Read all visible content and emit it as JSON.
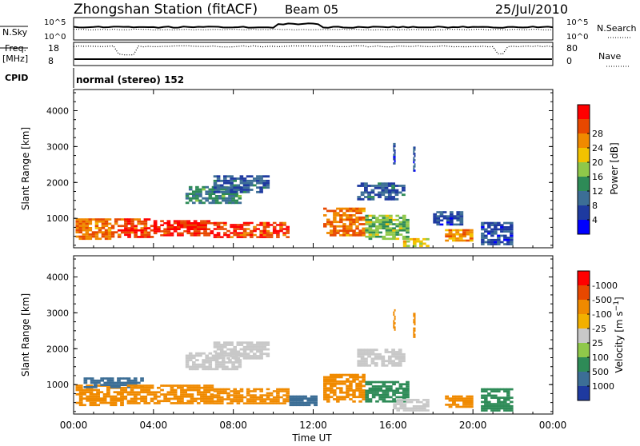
{
  "header": {
    "title": "Zhongshan Station (fitACF)",
    "beam": "Beam 05",
    "date": "25/Jul/2010"
  },
  "panels": {
    "nsky": {
      "left_label": "N.Sky",
      "ticks_left": [
        "10^5",
        "10^0"
      ],
      "right_label": "N.Search",
      "ticks_right": [
        "10^5",
        "10^0"
      ]
    },
    "freq": {
      "left_label_1": "Freq.",
      "left_label_2": "[MHz]",
      "ticks_left": [
        "18",
        "8"
      ],
      "right_label": "Nave",
      "ticks_right": [
        "80",
        "0"
      ]
    },
    "cpid": {
      "label": "CPID",
      "mode_text": "normal (stereo) 152"
    }
  },
  "chart_data": [
    {
      "type": "heatmap",
      "title": "",
      "xlabel": "Time UT",
      "ylabel": "Slant Range [km]",
      "x_ticks": [
        "00:00",
        "04:00",
        "08:00",
        "12:00",
        "16:00",
        "20:00",
        "00:00"
      ],
      "y_ticks": [
        1000,
        2000,
        3000,
        4000
      ],
      "ylim": [
        180,
        4590
      ],
      "colorbar": {
        "label": "Power [dB]",
        "ticks": [
          4,
          8,
          12,
          16,
          20,
          24,
          28
        ],
        "range": [
          0,
          30
        ],
        "colors": [
          "#0000ff",
          "#1e3aa0",
          "#3c6e96",
          "#2e8b57",
          "#8fc84a",
          "#f2c200",
          "#f08a00",
          "#e84800",
          "#ff0000"
        ]
      },
      "regions": [
        {
          "t": [
            0.1,
            2.2
          ],
          "r": [
            400,
            1000
          ],
          "value": 24
        },
        {
          "t": [
            2.2,
            4.0
          ],
          "r": [
            450,
            1000
          ],
          "value": 27
        },
        {
          "t": [
            4.0,
            7.0
          ],
          "r": [
            500,
            950
          ],
          "value": 28
        },
        {
          "t": [
            7.0,
            10.8
          ],
          "r": [
            450,
            900
          ],
          "value": 27
        },
        {
          "t": [
            5.6,
            8.4
          ],
          "r": [
            1400,
            1900
          ],
          "value": 10
        },
        {
          "t": [
            7.0,
            9.8
          ],
          "r": [
            1700,
            2200
          ],
          "value": 6
        },
        {
          "t": [
            12.5,
            14.6
          ],
          "r": [
            500,
            1300
          ],
          "value": 24
        },
        {
          "t": [
            14.6,
            16.8
          ],
          "r": [
            400,
            1100
          ],
          "value": 14
        },
        {
          "t": [
            14.2,
            16.6
          ],
          "r": [
            1500,
            2000
          ],
          "value": 6
        },
        {
          "t": [
            16.5,
            17.8
          ],
          "r": [
            200,
            450
          ],
          "value": 18
        },
        {
          "t": [
            18.0,
            19.5
          ],
          "r": [
            800,
            1200
          ],
          "value": 5
        },
        {
          "t": [
            18.6,
            20.0
          ],
          "r": [
            350,
            700
          ],
          "value": 22
        },
        {
          "t": [
            20.4,
            22.0
          ],
          "r": [
            250,
            900
          ],
          "value": 5
        },
        {
          "t": [
            16.0,
            16.1
          ],
          "r": [
            2500,
            3100
          ],
          "value": 5
        },
        {
          "t": [
            17.0,
            17.1
          ],
          "r": [
            2300,
            3000
          ],
          "value": 5
        }
      ]
    },
    {
      "type": "heatmap",
      "title": "",
      "xlabel": "Time UT",
      "ylabel": "Slant Range [km]",
      "x_ticks": [
        "00:00",
        "04:00",
        "08:00",
        "12:00",
        "16:00",
        "20:00",
        "00:00"
      ],
      "y_ticks": [
        1000,
        2000,
        3000,
        4000
      ],
      "ylim": [
        180,
        4590
      ],
      "colorbar": {
        "label": "Velocity [m s^-1]",
        "ticks": [
          "1000",
          "500",
          "100",
          "25",
          "-25",
          "-100",
          "-500",
          "-1000"
        ],
        "colors": [
          "#1e3aa0",
          "#3c6e96",
          "#2e8b57",
          "#8fc84a",
          "#c8c8c8",
          "#f2b000",
          "#f08a00",
          "#e84800",
          "#ff0000"
        ]
      },
      "regions": [
        {
          "t": [
            0.1,
            2.5
          ],
          "r": [
            400,
            1000
          ],
          "value": -200
        },
        {
          "t": [
            0.5,
            3.5
          ],
          "r": [
            900,
            1200
          ],
          "value": 300
        },
        {
          "t": [
            2.5,
            7.0
          ],
          "r": [
            450,
            1000
          ],
          "value": -200
        },
        {
          "t": [
            7.0,
            10.8
          ],
          "r": [
            450,
            900
          ],
          "value": -150
        },
        {
          "t": [
            5.6,
            8.4
          ],
          "r": [
            1400,
            1900
          ],
          "value": 0
        },
        {
          "t": [
            7.0,
            9.8
          ],
          "r": [
            1700,
            2200
          ],
          "value": 0
        },
        {
          "t": [
            10.8,
            12.2
          ],
          "r": [
            400,
            700
          ],
          "value": 300
        },
        {
          "t": [
            12.5,
            14.6
          ],
          "r": [
            500,
            1300
          ],
          "value": -200
        },
        {
          "t": [
            14.6,
            16.8
          ],
          "r": [
            500,
            1100
          ],
          "value": 60
        },
        {
          "t": [
            14.2,
            16.6
          ],
          "r": [
            1500,
            2000
          ],
          "value": 0
        },
        {
          "t": [
            16.0,
            17.8
          ],
          "r": [
            250,
            600
          ],
          "value": 0
        },
        {
          "t": [
            18.6,
            20.0
          ],
          "r": [
            350,
            700
          ],
          "value": -200
        },
        {
          "t": [
            20.4,
            22.0
          ],
          "r": [
            250,
            900
          ],
          "value": 200
        },
        {
          "t": [
            16.0,
            16.1
          ],
          "r": [
            2500,
            3100
          ],
          "value": -200
        },
        {
          "t": [
            17.0,
            17.1
          ],
          "r": [
            2300,
            3000
          ],
          "value": -200
        }
      ]
    }
  ]
}
